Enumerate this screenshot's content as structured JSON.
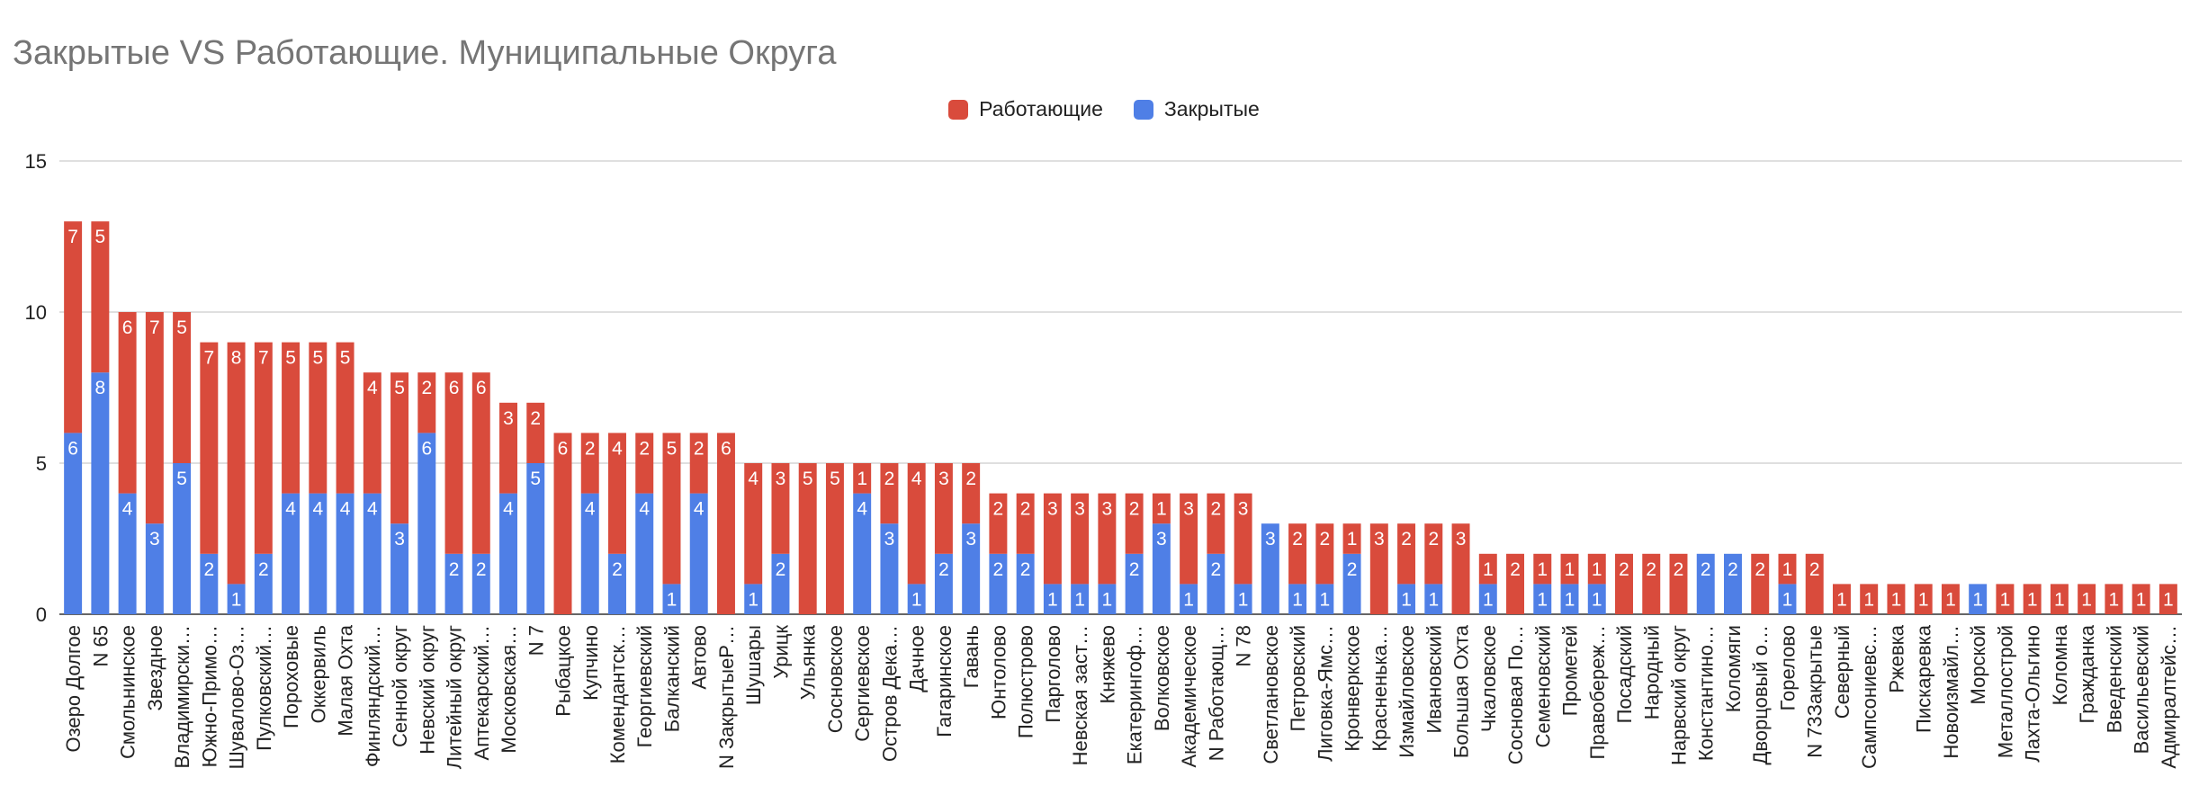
{
  "chart_data": {
    "type": "bar",
    "stacked": true,
    "title": "Закрытые VS Работающие. Муниципальные Округа",
    "ylim": [
      0,
      15
    ],
    "yticks": [
      "0",
      "5",
      "10",
      "15"
    ],
    "legend_position": "top-center",
    "categories": [
      "Озеро Долгое",
      "N 65",
      "Смольнинское",
      "Звездное",
      "Владимирски…",
      "Южно-Примо…",
      "Шувалово-Оз…",
      "Пулковский…",
      "Пороховые",
      "Оккервиль",
      "Малая Охта",
      "Финляндский…",
      "Сенной округ",
      "Невский округ",
      "Литейный округ",
      "Аптекарский…",
      "Московская…",
      "N 7",
      "Рыбацкое",
      "Купчино",
      "Комендантск…",
      "Георгиевский",
      "Балканский",
      "Автово",
      "N ЗакрытыеР…",
      "Шушары",
      "Урицк",
      "Ульянка",
      "Сосновское",
      "Сергиевское",
      "Остров Дека…",
      "Дачное",
      "Гагаринское",
      "Гавань",
      "Юнтолово",
      "Полюстрово",
      "Парголово",
      "Невская заст…",
      "Княжево",
      "Екатерингоф…",
      "Волковское",
      "Академическое",
      "N Работающ…",
      "N 78",
      "Светлановское",
      "Петровский",
      "Лиговка-Ямс…",
      "Кронверкское",
      "Красненька…",
      "Измайловское",
      "Ивановский",
      "Большая Охта",
      "Чкаловское",
      "Сосновая По…",
      "Семеновский",
      "Прометей",
      "Правобереж…",
      "Посадский",
      "Народный",
      "Нарвский округ",
      "Константино…",
      "Коломяги",
      "Дворцовый о…",
      "Горелово",
      "N 73Закрытые",
      "Северный",
      "Сампсониевс…",
      "Ржевка",
      "Пискаревка",
      "Новоизмайл…",
      "Морской",
      "Металлострой",
      "Лахта-Ольгино",
      "Коломна",
      "Гражданка",
      "Введенский",
      "Васильевский",
      "Адмиралтейс…"
    ],
    "series": [
      {
        "name": "Закрытые",
        "color": "#4f7fe6",
        "values": [
          6,
          8,
          4,
          3,
          5,
          2,
          1,
          2,
          4,
          4,
          4,
          4,
          3,
          6,
          2,
          2,
          4,
          5,
          0,
          4,
          2,
          4,
          1,
          4,
          0,
          1,
          2,
          0,
          0,
          4,
          3,
          1,
          2,
          3,
          2,
          2,
          1,
          1,
          1,
          2,
          3,
          1,
          2,
          1,
          3,
          1,
          1,
          2,
          0,
          1,
          1,
          0,
          1,
          0,
          1,
          1,
          1,
          0,
          0,
          0,
          2,
          2,
          0,
          1,
          0,
          0,
          0,
          0,
          0,
          0,
          1,
          0,
          0,
          0,
          0,
          0,
          0,
          0
        ]
      },
      {
        "name": "Работающие",
        "color": "#d94b3c",
        "values": [
          7,
          5,
          6,
          7,
          5,
          7,
          8,
          7,
          5,
          5,
          5,
          4,
          5,
          2,
          6,
          6,
          3,
          2,
          6,
          2,
          4,
          2,
          5,
          2,
          6,
          4,
          3,
          5,
          5,
          1,
          2,
          4,
          3,
          2,
          2,
          2,
          3,
          3,
          3,
          2,
          1,
          3,
          2,
          3,
          0,
          2,
          2,
          1,
          3,
          2,
          2,
          3,
          1,
          2,
          1,
          1,
          1,
          2,
          2,
          2,
          0,
          0,
          2,
          1,
          2,
          1,
          1,
          1,
          1,
          1,
          0,
          1,
          1,
          1,
          1,
          1,
          1,
          1
        ]
      }
    ]
  }
}
